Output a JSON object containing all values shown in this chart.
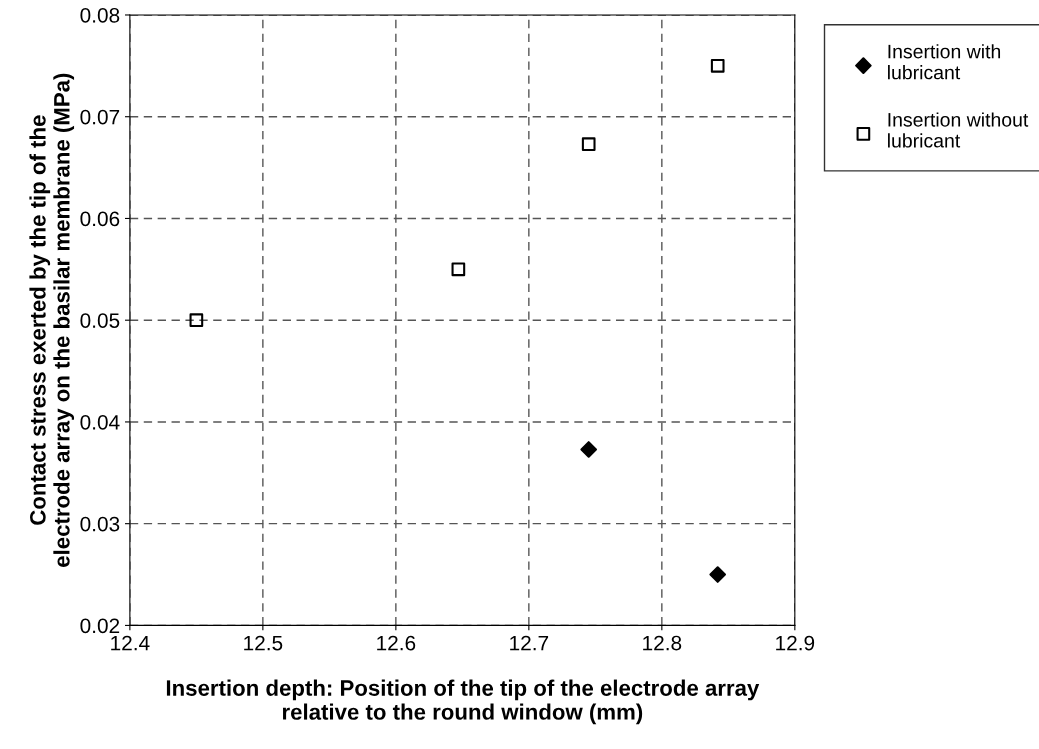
{
  "chart_data": {
    "type": "scatter",
    "xlabel": "Insertion depth: Position of the tip of the electrode array\nrelative to the round window (mm)",
    "ylabel": "Contact stress exerted by the tip of the\nelectrode array on the basilar membrane (MPa)",
    "series": [
      {
        "name": "Insertion with\nlubricant",
        "color": "#000000",
        "marker": "diamond",
        "x": [
          12.745,
          12.842
        ],
        "values": [
          0.0373,
          0.025
        ]
      },
      {
        "name": "Insertion without\nlubricant",
        "color": "#000000",
        "marker": "square",
        "x": [
          12.45,
          12.647,
          12.745,
          12.842
        ],
        "values": [
          0.05,
          0.055,
          0.0673,
          0.075
        ]
      }
    ],
    "xlim": [
      12.4,
      12.9
    ],
    "xticks": [
      12.4,
      12.5,
      12.6,
      12.7,
      12.8,
      12.9
    ],
    "ylim": [
      0.02,
      0.08
    ],
    "yticks": [
      0.02,
      0.03,
      0.04,
      0.05,
      0.06,
      0.07,
      0.08
    ],
    "grid": true,
    "legend": "top right"
  }
}
